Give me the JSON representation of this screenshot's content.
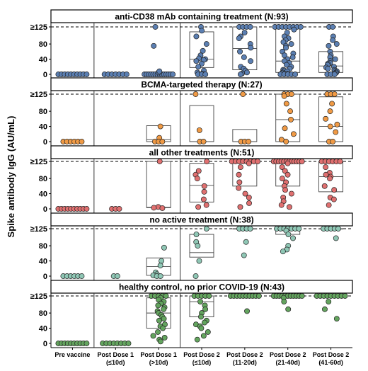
{
  "y_axis_label": "Spike antibody IgG (AU/mL)",
  "y_ticks": [
    "0",
    "40",
    "80",
    "≥125"
  ],
  "x_categories": [
    [
      "Pre vaccine"
    ],
    [
      "Post Dose 1",
      "(≤10d)"
    ],
    [
      "Post Dose 1",
      "(>10d)"
    ],
    [
      "Post Dose 2",
      "(≤10d)"
    ],
    [
      "Post Dose 2",
      "(11-20d)"
    ],
    [
      "Post Dose 2",
      "(21-40d)"
    ],
    [
      "Post Dose 2",
      "(41-60d)"
    ]
  ],
  "colors": {
    "anti_cd38": "#5b7fb2",
    "bcma": "#f09a45",
    "all_other": "#e07070",
    "no_active": "#8fc7b5",
    "healthy": "#63a45e"
  },
  "chart_data": {
    "type": "scatter",
    "subtype": "box-and-jitter, faceted",
    "y_axis": {
      "label": "Spike antibody IgG (AU/mL)",
      "ylim": [
        0,
        125
      ],
      "ticks": [
        0,
        40,
        80,
        125
      ],
      "cap_label": "≥125",
      "dashed_reference_line": 125
    },
    "x_axis": {
      "categories": [
        "Pre vaccine",
        "Post Dose 1 (≤10d)",
        "Post Dose 1 (>10d)",
        "Post Dose 2 (≤10d)",
        "Post Dose 2 (11-20d)",
        "Post Dose 2 (21-40d)",
        "Post Dose 2 (41-60d)"
      ]
    },
    "panels": [
      {
        "title": "anti-CD38 mAb containing treatment (N:93)",
        "color": "#5b7fb2",
        "groups": [
          {
            "category": "Pre vaccine",
            "points": [
              0,
              0,
              0,
              0,
              0,
              0,
              0,
              0,
              0,
              0
            ],
            "box": null
          },
          {
            "category": "Post Dose 1 (≤10d)",
            "points": [
              0,
              0,
              0,
              0,
              0,
              0,
              0
            ],
            "box": null
          },
          {
            "category": "Post Dose 1 (>10d)",
            "points": [
              0,
              0,
              0,
              0,
              0,
              0,
              0,
              0,
              0,
              0,
              0,
              0,
              0,
              0,
              5,
              8,
              75,
              125
            ],
            "box": {
              "q1": 0,
              "median": 0,
              "q3": 2
            }
          },
          {
            "category": "Post Dose 2 (≤10d)",
            "points": [
              125,
              115,
              100,
              80,
              62,
              50,
              42,
              40,
              38,
              35,
              28,
              20,
              10,
              5,
              2,
              0,
              0,
              0
            ],
            "box": {
              "q1": 18,
              "median": 40,
              "q3": 112
            }
          },
          {
            "category": "Post Dose 2 (11-20d)",
            "points": [
              125,
              125,
              125,
              125,
              110,
              100,
              95,
              80,
              70,
              60,
              45,
              35,
              20,
              15,
              10,
              5,
              2,
              0
            ],
            "box": {
              "q1": 12,
              "median": 68,
              "q3": 125
            }
          },
          {
            "category": "Post Dose 2 (21-40d)",
            "points": [
              125,
              125,
              125,
              125,
              125,
              125,
              125,
              125,
              118,
              110,
              100,
              95,
              90,
              85,
              80,
              75,
              70,
              60,
              55,
              50,
              45,
              40,
              35,
              30,
              25,
              20,
              15,
              12,
              10,
              8,
              5,
              3,
              2,
              0,
              0,
              0,
              0,
              0
            ],
            "box": {
              "q1": 5,
              "median": 35,
              "q3": 125
            }
          },
          {
            "category": "Post Dose 2 (41-60d)",
            "points": [
              125,
              125,
              100,
              90,
              80,
              75,
              60,
              50,
              45,
              40,
              35,
              30,
              28,
              25,
              20,
              18,
              15,
              12,
              10,
              8,
              5,
              3,
              2,
              0,
              0,
              0
            ],
            "box": {
              "q1": 5,
              "median": 22,
              "q3": 60
            }
          }
        ]
      },
      {
        "title": "BCMA-targeted therapy (N:27)",
        "color": "#f09a45",
        "groups": [
          {
            "category": "Pre vaccine",
            "points": [
              0,
              0,
              0,
              0,
              0,
              0
            ],
            "box": null
          },
          {
            "category": "Post Dose 1 (≤10d)",
            "points": [],
            "box": null
          },
          {
            "category": "Post Dose 1 (>10d)",
            "points": [
              40,
              10,
              0,
              0,
              0
            ],
            "box": {
              "q1": 0,
              "median": 5,
              "q3": 42
            }
          },
          {
            "category": "Post Dose 2 (≤10d)",
            "points": [
              125,
              30,
              0,
              0
            ],
            "box": {
              "q1": 0,
              "median": 0,
              "q3": 95
            }
          },
          {
            "category": "Post Dose 2 (11-20d)",
            "points": [
              125,
              0,
              0,
              0
            ],
            "box": {
              "q1": 0,
              "median": 0,
              "q3": 32
            }
          },
          {
            "category": "Post Dose 2 (21-40d)",
            "points": [
              125,
              125,
              125,
              120,
              100,
              80,
              58,
              35,
              20,
              5,
              0
            ],
            "box": {
              "q1": 0,
              "median": 58,
              "q3": 125
            }
          },
          {
            "category": "Post Dose 2 (41-60d)",
            "points": [
              125,
              125,
              125,
              100,
              80,
              60,
              45,
              40,
              25,
              0,
              0
            ],
            "box": {
              "q1": 0,
              "median": 40,
              "q3": 118
            }
          }
        ]
      },
      {
        "title": "all other treatments (N:51)",
        "color": "#e07070",
        "groups": [
          {
            "category": "Pre vaccine",
            "points": [
              0,
              0,
              0,
              0,
              0,
              0,
              0,
              0,
              0,
              0
            ],
            "box": null
          },
          {
            "category": "Post Dose 1 (≤10d)",
            "points": [
              0,
              0,
              0
            ],
            "box": null
          },
          {
            "category": "Post Dose 1 (>10d)",
            "points": [
              125,
              5,
              3,
              2
            ],
            "box": {
              "q1": 3,
              "median": 4,
              "q3": 125
            }
          },
          {
            "category": "Post Dose 2 (≤10d)",
            "points": [
              125,
              100,
              90,
              80,
              60,
              45,
              25,
              10,
              5
            ],
            "box": {
              "q1": 18,
              "median": 62,
              "q3": 120
            }
          },
          {
            "category": "Post Dose 2 (11-20d)",
            "points": [
              125,
              125,
              125,
              125,
              125,
              125,
              125,
              125,
              120,
              110,
              90,
              70,
              55,
              40,
              30,
              15,
              5
            ],
            "box": {
              "q1": 60,
              "median": 125,
              "q3": 125
            }
          },
          {
            "category": "Post Dose 2 (21-40d)",
            "points": [
              125,
              125,
              125,
              125,
              125,
              125,
              125,
              125,
              125,
              125,
              125,
              125,
              120,
              110,
              100,
              90,
              80,
              70,
              60,
              50,
              40,
              30,
              20,
              10,
              5
            ],
            "box": {
              "q1": 60,
              "median": 125,
              "q3": 125
            }
          },
          {
            "category": "Post Dose 2 (41-60d)",
            "points": [
              125,
              125,
              125,
              125,
              125,
              125,
              110,
              95,
              90,
              85,
              80,
              60,
              50,
              30,
              25,
              10
            ],
            "box": {
              "q1": 45,
              "median": 85,
              "q3": 125
            }
          }
        ]
      },
      {
        "title": "no active treatment (N:38)",
        "color": "#8fc7b5",
        "groups": [
          {
            "category": "Pre vaccine",
            "points": [
              0,
              0,
              0,
              0,
              0,
              0
            ],
            "box": null
          },
          {
            "category": "Post Dose 1 (≤10d)",
            "points": [
              0,
              0
            ],
            "box": null
          },
          {
            "category": "Post Dose 1 (>10d)",
            "points": [
              75,
              40,
              28,
              10,
              5,
              2,
              0,
              0
            ],
            "box": {
              "q1": 2,
              "median": 25,
              "q3": 48
            }
          },
          {
            "category": "Post Dose 2 (≤10d)",
            "points": [
              125,
              110,
              90,
              80,
              40,
              0
            ],
            "box": {
              "q1": 50,
              "median": 62,
              "q3": 110
            }
          },
          {
            "category": "Post Dose 2 (11-20d)",
            "points": [
              125,
              125,
              125,
              125,
              90,
              55
            ],
            "box": {
              "q1": 125,
              "median": 125,
              "q3": 125
            }
          },
          {
            "category": "Post Dose 2 (21-40d)",
            "points": [
              125,
              125,
              125,
              125,
              125,
              125,
              125,
              120,
              110,
              100,
              80,
              70,
              65
            ],
            "box": {
              "q1": 110,
              "median": 125,
              "q3": 125
            }
          },
          {
            "category": "Post Dose 2 (41-60d)",
            "points": [
              125,
              125,
              125,
              125,
              125,
              100
            ],
            "box": {
              "q1": 125,
              "median": 125,
              "q3": 125
            }
          }
        ]
      },
      {
        "title": "healthy control, no prior COVID-19 (N:43)",
        "color": "#63a45e",
        "groups": [
          {
            "category": "Pre vaccine",
            "points": [
              0,
              0,
              0,
              0,
              0,
              0,
              0,
              0,
              0,
              0
            ],
            "box": null
          },
          {
            "category": "Post Dose 1 (≤10d)",
            "points": [
              0,
              0,
              0,
              0,
              0,
              0,
              0,
              0
            ],
            "box": null
          },
          {
            "category": "Post Dose 1 (>10d)",
            "points": [
              125,
              125,
              125,
              125,
              125,
              120,
              115,
              110,
              105,
              100,
              95,
              90,
              85,
              80,
              75,
              70,
              65,
              60,
              50,
              45,
              40,
              30,
              20,
              15,
              10,
              5
            ],
            "box": {
              "q1": 40,
              "median": 80,
              "q3": 120
            }
          },
          {
            "category": "Post Dose 2 (≤10d)",
            "points": [
              125,
              125,
              125,
              125,
              125,
              110,
              100,
              90,
              80,
              70,
              60,
              55,
              50,
              45,
              40,
              30,
              20,
              10
            ],
            "box": {
              "q1": 70,
              "median": 110,
              "q3": 125
            }
          },
          {
            "category": "Post Dose 2 (11-20d)",
            "points": [
              125,
              125,
              125,
              125,
              125,
              125,
              125,
              125,
              125,
              125,
              85
            ],
            "box": {
              "q1": 125,
              "median": 125,
              "q3": 125
            }
          },
          {
            "category": "Post Dose 2 (21-40d)",
            "points": [
              125,
              125,
              125,
              125,
              125,
              125,
              125,
              125,
              125,
              125,
              125,
              120,
              110,
              90
            ],
            "box": {
              "q1": 125,
              "median": 125,
              "q3": 125
            }
          },
          {
            "category": "Post Dose 2 (41-60d)",
            "points": [
              125,
              125,
              125,
              125,
              125,
              125,
              125,
              125,
              125,
              110,
              90,
              65
            ],
            "box": {
              "q1": 125,
              "median": 125,
              "q3": 125
            }
          }
        ]
      }
    ]
  }
}
